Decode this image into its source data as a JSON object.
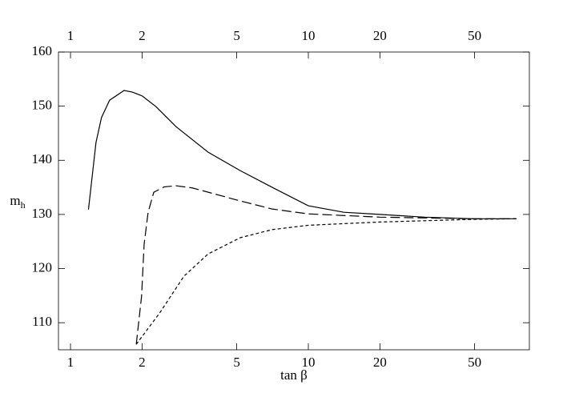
{
  "chart_data": {
    "type": "line",
    "xlabel": "tan β",
    "ylabel": "m",
    "ylabel_sub": "h",
    "xscale": "log",
    "xlim": [
      0.89,
      85
    ],
    "ylim": [
      105,
      160
    ],
    "xticks": [
      1,
      2,
      5,
      10,
      20,
      50
    ],
    "yticks": [
      110,
      120,
      130,
      140,
      150,
      160
    ],
    "grid": false,
    "series": [
      {
        "color": "#000000",
        "dash": "none",
        "x": [
          1.19,
          1.28,
          1.35,
          1.46,
          1.68,
          1.82,
          2.0,
          2.29,
          2.78,
          3.79,
          5.17,
          7.05,
          10,
          14.1,
          20,
          30.8,
          50,
          75
        ],
        "values": [
          130.9,
          143.3,
          147.9,
          151.1,
          152.9,
          152.6,
          151.9,
          149.9,
          146.2,
          141.5,
          138.1,
          135,
          131.6,
          130.4,
          130,
          129.5,
          129.2,
          129.2
        ]
      },
      {
        "color": "#000000",
        "dash": "12,5",
        "x": [
          1.89,
          1.99,
          2.04,
          2.12,
          2.24,
          2.48,
          2.78,
          3.25,
          4.1,
          5.17,
          7.05,
          10,
          20,
          50,
          75
        ],
        "values": [
          106,
          114.9,
          124.5,
          130.4,
          134.1,
          135.1,
          135.3,
          134.9,
          133.7,
          132.5,
          131,
          130.1,
          129.5,
          129.2,
          129.2
        ]
      },
      {
        "color": "#000000",
        "dash": "4,3",
        "x": [
          1.89,
          2.38,
          3.0,
          3.79,
          5.17,
          7.05,
          10,
          20,
          50,
          75
        ],
        "values": [
          106,
          111.9,
          118.6,
          122.7,
          125.7,
          127.2,
          128,
          128.6,
          129.1,
          129.2
        ]
      }
    ]
  }
}
